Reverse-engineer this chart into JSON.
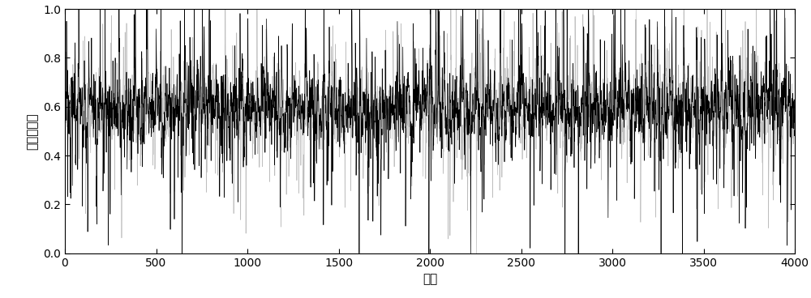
{
  "n_points": 4000,
  "seed": 42,
  "xlim": [
    0,
    4000
  ],
  "ylim": [
    0,
    1
  ],
  "xticks": [
    0,
    500,
    1000,
    1500,
    2000,
    2500,
    3000,
    3500,
    4000
  ],
  "yticks": [
    0,
    0.2,
    0.4,
    0.6,
    0.8,
    1.0
  ],
  "xlabel": "序号",
  "ylabel": "规范化幅値",
  "background_color": "#ffffff",
  "figure_width": 10.0,
  "figure_height": 3.68,
  "dpi": 100,
  "base_mean": 0.595,
  "base_std": 0.055,
  "spike_prob": 0.18,
  "spike_std": 0.22,
  "line_color_1": "#000000",
  "line_color_2": "#888888",
  "line_alpha_1": 1.0,
  "line_alpha_2": 0.55,
  "line_width": 0.5
}
